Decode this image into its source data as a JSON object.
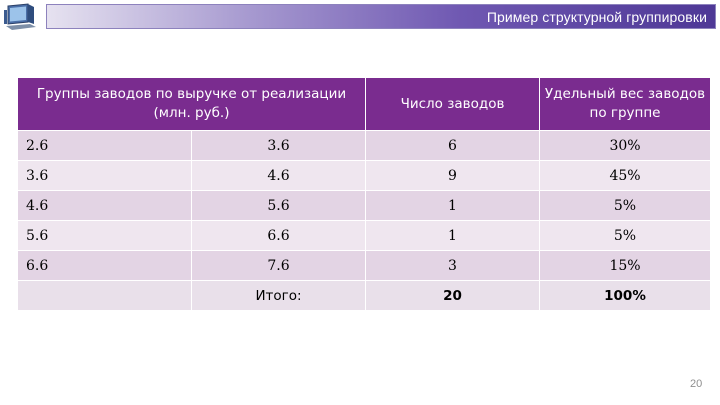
{
  "header": {
    "title": "Пример структурной группировки"
  },
  "table": {
    "headers": {
      "groups": "Группы заводов по выручке от реализации (млн. руб.)",
      "count": "Число заводов",
      "share": "Удельный вес заводов по группе"
    },
    "rows": [
      {
        "from": "2.6",
        "to": "3.6",
        "count": "6",
        "share": "30%"
      },
      {
        "from": "3.6",
        "to": "4.6",
        "count": "9",
        "share": "45%"
      },
      {
        "from": "4.6",
        "to": "5.6",
        "count": "1",
        "share": "5%"
      },
      {
        "from": "5.6",
        "to": "6.6",
        "count": "1",
        "share": "5%"
      },
      {
        "from": "6.6",
        "to": "7.6",
        "count": "3",
        "share": "15%"
      }
    ],
    "total": {
      "label": "Итого:",
      "count": "20",
      "share": "100%"
    }
  },
  "footer": {
    "page_number": "20"
  },
  "icons": {
    "logo": "computer-monitor-icon"
  },
  "colors": {
    "header_bg": "#7a2c8f",
    "row_odd": "#e3d4e4",
    "row_even": "#efe6ef",
    "title_bar_end": "#4e3896"
  }
}
